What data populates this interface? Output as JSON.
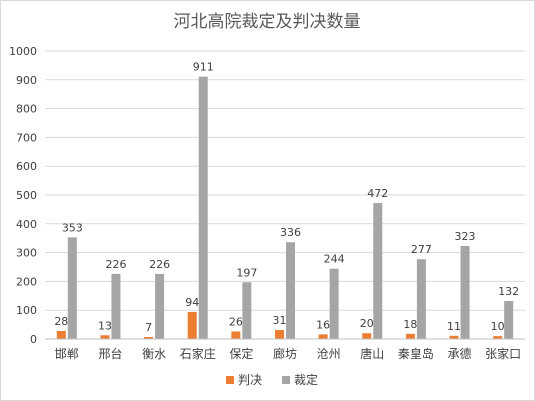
{
  "chart_data": {
    "type": "bar",
    "title": "河北高院裁定及判决数量",
    "categories": [
      "邯郸",
      "邢台",
      "衡水",
      "石家庄",
      "保定",
      "廊坊",
      "沧州",
      "唐山",
      "秦皇岛",
      "承德",
      "张家口"
    ],
    "series": [
      {
        "name": "判决",
        "color": "#ed7d31",
        "values": [
          28,
          13,
          7,
          94,
          26,
          31,
          16,
          20,
          18,
          11,
          10
        ]
      },
      {
        "name": "裁定",
        "color": "#a5a5a5",
        "values": [
          353,
          226,
          226,
          911,
          197,
          336,
          244,
          472,
          277,
          323,
          132
        ]
      }
    ],
    "ylim": [
      0,
      1000
    ],
    "yticks": [
      0,
      100,
      200,
      300,
      400,
      500,
      600,
      700,
      800,
      900,
      1000
    ],
    "grid": true,
    "legend": "bottom"
  }
}
